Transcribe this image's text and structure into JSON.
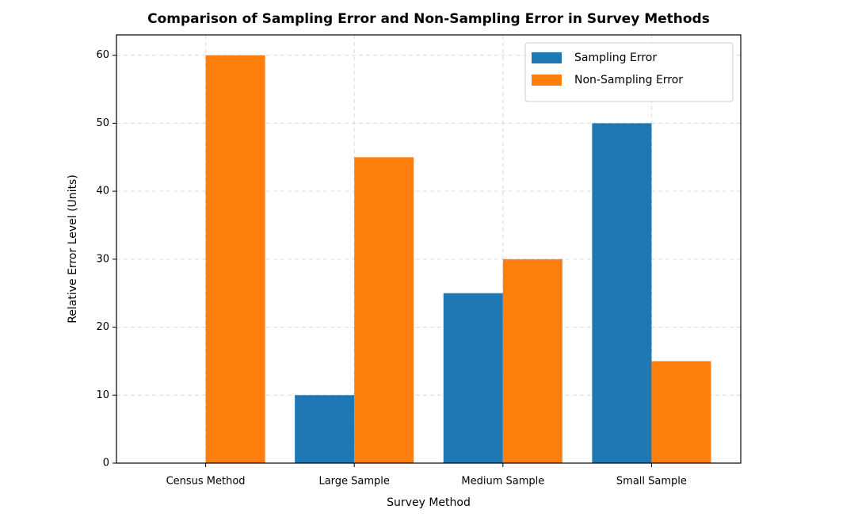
{
  "chart_data": {
    "type": "bar",
    "title": "Comparison of Sampling Error and Non-Sampling Error in Survey Methods",
    "x_label": "Survey Method",
    "y_label": "Relative Error Level (Units)",
    "categories": [
      "Census Method",
      "Large Sample",
      "Medium Sample",
      "Small Sample"
    ],
    "series": [
      {
        "name": "Sampling Error",
        "color": "#1f77b4",
        "values": [
          0,
          10,
          25,
          50
        ]
      },
      {
        "name": "Non-Sampling Error",
        "color": "#ff7f0e",
        "values": [
          60,
          45,
          30,
          15
        ]
      }
    ],
    "ylim": [
      0,
      63
    ],
    "yticks": [
      0,
      10,
      20,
      30,
      40,
      50,
      60
    ],
    "grid": true,
    "legend": "upper right"
  }
}
